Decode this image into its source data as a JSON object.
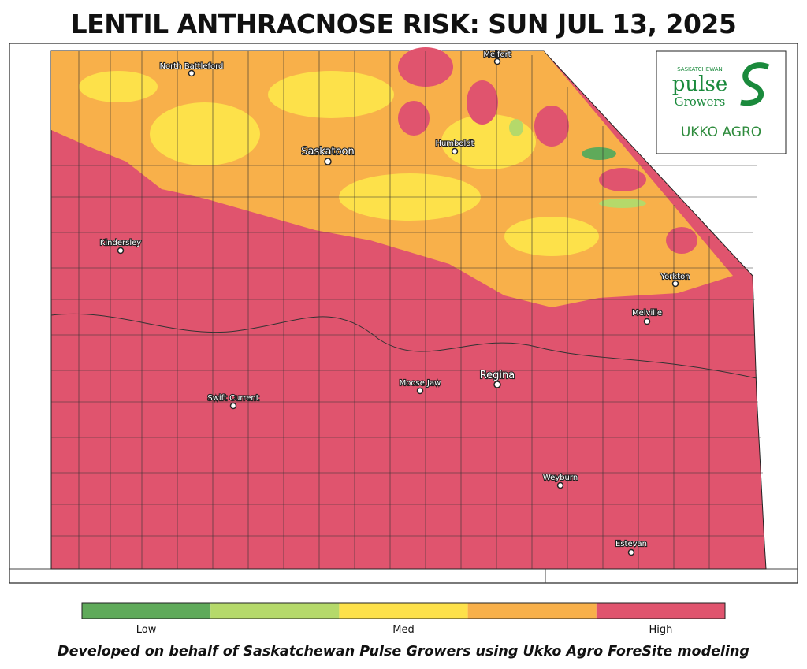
{
  "title": "LENTIL ANTHRACNOSE RISK: SUN JUL 13, 2025",
  "cities": [
    "North Battleford",
    "Melfort",
    "Saskatoon",
    "Humboldt",
    "Kindersley",
    "Yorkton",
    "Melville",
    "Regina",
    "Moose Jaw",
    "Swift Current",
    "Weyburn",
    "Estevan"
  ],
  "logo": {
    "org_top": "SASKATCHEWAN",
    "org_main": "pulse",
    "org_sub": "Growers",
    "partner": "UKKO AGRO"
  },
  "legend": {
    "colors": [
      "#5faa5a",
      "#b5d96a",
      "#fde14a",
      "#f8b04a",
      "#e0546e"
    ],
    "labels": [
      "Low",
      "Med",
      "High"
    ]
  },
  "footer": "Developed on behalf of Saskatchewan Pulse Growers using Ukko Agro ForeSite modeling"
}
